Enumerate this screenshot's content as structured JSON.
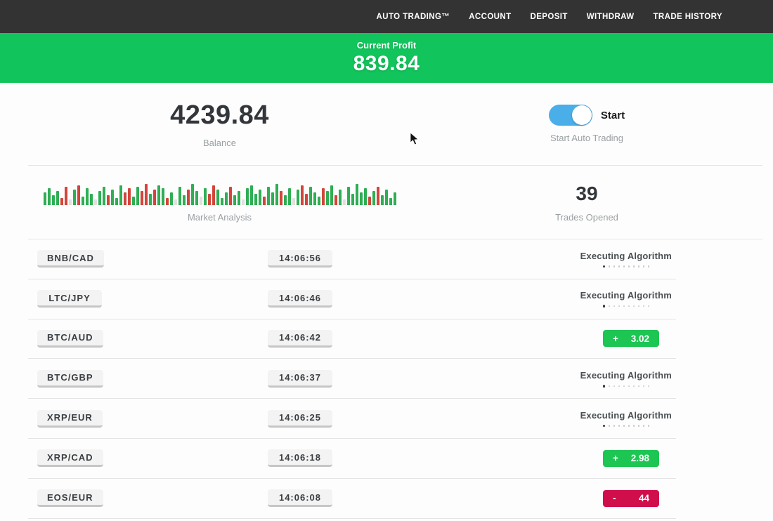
{
  "nav": {
    "items": [
      "AUTO TRADING™",
      "ACCOUNT",
      "DEPOSIT",
      "WITHDRAW",
      "TRADE HISTORY"
    ]
  },
  "banner": {
    "label": "Current Profit",
    "value": "839.84"
  },
  "stats": {
    "balance": {
      "value": "4239.84",
      "label": "Balance"
    },
    "auto_trading": {
      "toggle_on": true,
      "toggle_label": "Start",
      "label": "Start Auto Trading"
    },
    "market_analysis": {
      "label": "Market Analysis"
    },
    "trades_opened": {
      "value": "39",
      "label": "Trades Opened"
    }
  },
  "market_chart": {
    "type": "bar",
    "bar_colors": {
      "g": "#2fae54",
      "r": "#d2453c",
      "l": "#e0e0e0"
    },
    "bars": [
      [
        18,
        "g"
      ],
      [
        24,
        "g"
      ],
      [
        14,
        "g"
      ],
      [
        20,
        "g"
      ],
      [
        10,
        "r"
      ],
      [
        26,
        "r"
      ],
      [
        8,
        "l"
      ],
      [
        22,
        "g"
      ],
      [
        28,
        "r"
      ],
      [
        12,
        "g"
      ],
      [
        24,
        "g"
      ],
      [
        16,
        "g"
      ],
      [
        8,
        "l"
      ],
      [
        20,
        "g"
      ],
      [
        26,
        "g"
      ],
      [
        14,
        "r"
      ],
      [
        22,
        "g"
      ],
      [
        10,
        "g"
      ],
      [
        28,
        "g"
      ],
      [
        18,
        "r"
      ],
      [
        24,
        "r"
      ],
      [
        12,
        "g"
      ],
      [
        26,
        "g"
      ],
      [
        20,
        "r"
      ],
      [
        30,
        "r"
      ],
      [
        16,
        "g"
      ],
      [
        22,
        "r"
      ],
      [
        28,
        "g"
      ],
      [
        24,
        "g"
      ],
      [
        10,
        "r"
      ],
      [
        18,
        "g"
      ],
      [
        8,
        "l"
      ],
      [
        26,
        "g"
      ],
      [
        14,
        "g"
      ],
      [
        22,
        "r"
      ],
      [
        30,
        "g"
      ],
      [
        20,
        "g"
      ],
      [
        12,
        "l"
      ],
      [
        24,
        "g"
      ],
      [
        16,
        "r"
      ],
      [
        28,
        "r"
      ],
      [
        22,
        "g"
      ],
      [
        10,
        "g"
      ],
      [
        18,
        "g"
      ],
      [
        26,
        "r"
      ],
      [
        14,
        "g"
      ],
      [
        20,
        "g"
      ],
      [
        8,
        "l"
      ],
      [
        24,
        "g"
      ],
      [
        28,
        "g"
      ],
      [
        16,
        "g"
      ],
      [
        22,
        "g"
      ],
      [
        12,
        "r"
      ],
      [
        26,
        "g"
      ],
      [
        18,
        "g"
      ],
      [
        30,
        "g"
      ],
      [
        20,
        "r"
      ],
      [
        14,
        "g"
      ],
      [
        24,
        "g"
      ],
      [
        10,
        "l"
      ],
      [
        22,
        "g"
      ],
      [
        28,
        "r"
      ],
      [
        16,
        "r"
      ],
      [
        26,
        "g"
      ],
      [
        18,
        "g"
      ],
      [
        12,
        "g"
      ],
      [
        24,
        "r"
      ],
      [
        20,
        "g"
      ],
      [
        28,
        "g"
      ],
      [
        14,
        "r"
      ],
      [
        22,
        "g"
      ],
      [
        8,
        "l"
      ],
      [
        26,
        "g"
      ],
      [
        16,
        "g"
      ],
      [
        30,
        "g"
      ],
      [
        18,
        "g"
      ],
      [
        24,
        "g"
      ],
      [
        12,
        "r"
      ],
      [
        20,
        "g"
      ],
      [
        26,
        "r"
      ],
      [
        14,
        "g"
      ],
      [
        22,
        "g"
      ],
      [
        10,
        "g"
      ],
      [
        18,
        "g"
      ]
    ]
  },
  "table": {
    "executing_label": "Executing Algorithm",
    "executing_dots": 10,
    "rows": [
      {
        "pair": "BNB/CAD",
        "time": "14:06:56",
        "status": "executing"
      },
      {
        "pair": "LTC/JPY",
        "time": "14:06:46",
        "status": "executing"
      },
      {
        "pair": "BTC/AUD",
        "time": "14:06:42",
        "status": "profit",
        "sign": "+",
        "value": "3.02"
      },
      {
        "pair": "BTC/GBP",
        "time": "14:06:37",
        "status": "executing"
      },
      {
        "pair": "XRP/EUR",
        "time": "14:06:25",
        "status": "executing"
      },
      {
        "pair": "XRP/CAD",
        "time": "14:06:18",
        "status": "profit",
        "sign": "+",
        "value": "2.98"
      },
      {
        "pair": "EOS/EUR",
        "time": "14:06:08",
        "status": "loss",
        "sign": "-",
        "value": "44"
      }
    ]
  },
  "colors": {
    "nav_bg": "#333333",
    "accent_green": "#12c45c",
    "badge_green": "#1dc553",
    "badge_red": "#d00e4c",
    "toggle_blue": "#4aaee8"
  }
}
